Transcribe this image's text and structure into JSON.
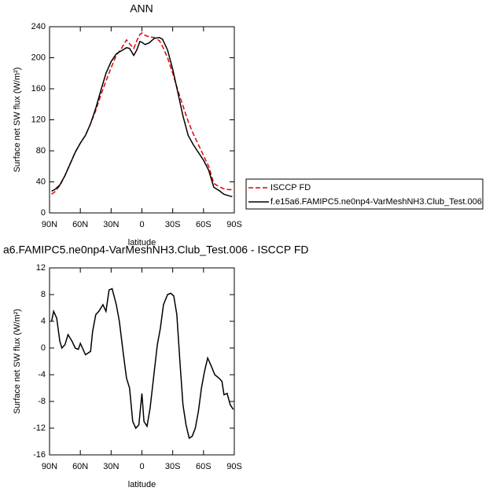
{
  "chart_data": [
    {
      "type": "line",
      "title": "ANN",
      "xlabel": "latitude",
      "ylabel": "Surface net SW flux (W/m²)",
      "x": [
        88,
        85,
        80,
        75,
        70,
        65,
        60,
        55,
        50,
        45,
        40,
        35,
        30,
        25,
        20,
        15,
        12,
        8,
        5,
        2,
        0,
        -3,
        -7,
        -12,
        -17,
        -20,
        -25,
        -30,
        -35,
        -40,
        -45,
        -50,
        -55,
        -60,
        -65,
        -70,
        -75,
        -80,
        -85,
        -88
      ],
      "series": [
        {
          "name": "ISCCP FD",
          "color": "#e00000",
          "linestyle": "dashed",
          "values": [
            24,
            27,
            35,
            48,
            63,
            78,
            90,
            100,
            115,
            132,
            152,
            170,
            187,
            203,
            212,
            223,
            218,
            212,
            222,
            230,
            232,
            229,
            227,
            226,
            222,
            215,
            200,
            180,
            158,
            138,
            118,
            102,
            88,
            74,
            60,
            38,
            34,
            31,
            30,
            30
          ]
        },
        {
          "name": "f.e15a6.FAMIPC5.ne0np4-VarMeshNH3.Club_Test.006",
          "color": "#000000",
          "linestyle": "solid",
          "values": [
            28,
            30,
            36,
            48,
            63,
            78,
            90,
            100,
            115,
            135,
            158,
            180,
            195,
            205,
            209,
            213,
            212,
            203,
            210,
            221,
            220,
            217,
            219,
            225,
            226,
            224,
            210,
            185,
            155,
            125,
            100,
            88,
            78,
            68,
            55,
            33,
            29,
            24,
            22,
            21
          ]
        }
      ],
      "xlim": [
        90,
        -90
      ],
      "xticks": [
        {
          "value": 90,
          "label": "90N"
        },
        {
          "value": 60,
          "label": "60N"
        },
        {
          "value": 30,
          "label": "30N"
        },
        0,
        {
          "value": -30,
          "label": "30S"
        },
        {
          "value": -60,
          "label": "60S"
        },
        {
          "value": -90,
          "label": "90S"
        }
      ],
      "ylim": [
        0,
        240
      ],
      "yticks": [
        0,
        40,
        80,
        120,
        160,
        200,
        240
      ],
      "legend": "outside right"
    },
    {
      "type": "line",
      "title": "a6.FAMIPC5.ne0np4-VarMeshNH3.Club_Test.006 - ISCCP FD",
      "xlabel": "latitude",
      "ylabel": "Surface net SW flux (W/m²)",
      "x": [
        88,
        86,
        83,
        80,
        78,
        75,
        72,
        68,
        65,
        62,
        60,
        55,
        50,
        48,
        45,
        42,
        38,
        35,
        32,
        29,
        25,
        22,
        18,
        15,
        12,
        9,
        6,
        3,
        0,
        -2,
        -5,
        -8,
        -12,
        -15,
        -18,
        -21,
        -25,
        -28,
        -31,
        -34,
        -37,
        -40,
        -43,
        -46,
        -49,
        -52,
        -55,
        -58,
        -61,
        -64,
        -67,
        -71,
        -75,
        -78,
        -80,
        -83,
        -86,
        -89
      ],
      "series": [
        {
          "color": "#000000",
          "linestyle": "solid",
          "values": [
            4,
            5.5,
            4.5,
            1,
            0,
            0.5,
            2,
            1,
            0,
            -0.2,
            0.7,
            -1,
            -0.5,
            2.5,
            5,
            5.5,
            6.5,
            5.5,
            8.7,
            8.9,
            6.5,
            4,
            -1,
            -4.5,
            -6,
            -11,
            -12,
            -11.5,
            -6.8,
            -11,
            -11.7,
            -9,
            -3.5,
            0.5,
            3,
            6.5,
            8,
            8.2,
            7.8,
            5,
            -2,
            -8.5,
            -11.5,
            -13.5,
            -13.2,
            -12,
            -9.5,
            -6,
            -3.5,
            -1.5,
            -2.5,
            -4,
            -4.5,
            -5,
            -7,
            -6.8,
            -8.5,
            -9.2
          ]
        }
      ],
      "xlim": [
        90,
        -90
      ],
      "xticks": [
        {
          "value": 90,
          "label": "90N"
        },
        {
          "value": 60,
          "label": "60N"
        },
        {
          "value": 30,
          "label": "30N"
        },
        0,
        {
          "value": -30,
          "label": "30S"
        },
        {
          "value": -60,
          "label": "60S"
        },
        {
          "value": -90,
          "label": "90S"
        }
      ],
      "ylim": [
        -16,
        12
      ],
      "yticks": [
        -16,
        -12,
        -8,
        -4,
        0,
        4,
        8,
        12
      ]
    }
  ]
}
